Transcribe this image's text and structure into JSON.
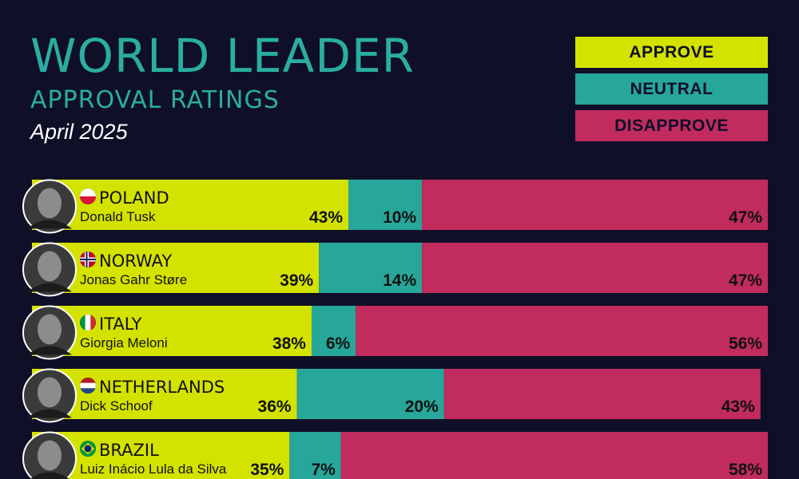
{
  "header": {
    "title": "WORLD LEADER",
    "subtitle": "APPROVAL RATINGS",
    "date": "April 2025"
  },
  "legend": {
    "approve": "APPROVE",
    "neutral": "NEUTRAL",
    "disapprove": "DISAPPROVE"
  },
  "colors": {
    "background": "#0f0f27",
    "approve": "#d4e200",
    "neutral": "#27a69a",
    "disapprove": "#c12b5e",
    "title": "#2aaea1"
  },
  "chart_data": {
    "type": "bar",
    "stacked": true,
    "orientation": "horizontal",
    "categories": [
      "POLAND",
      "NORWAY",
      "ITALY",
      "NETHERLANDS",
      "BRAZIL"
    ],
    "leaders": [
      "Donald Tusk",
      "Jonas Gahr Støre",
      "Giorgia Meloni",
      "Dick Schoof",
      "Luiz Inácio Lula da Silva"
    ],
    "flag_icons": [
      "poland-flag-icon",
      "norway-flag-icon",
      "italy-flag-icon",
      "netherlands-flag-icon",
      "brazil-flag-icon"
    ],
    "series": [
      {
        "name": "APPROVE",
        "values": [
          43,
          39,
          38,
          36,
          35
        ],
        "labels": [
          "43%",
          "39%",
          "38%",
          "36%",
          "35%"
        ]
      },
      {
        "name": "NEUTRAL",
        "values": [
          10,
          14,
          6,
          20,
          7
        ],
        "labels": [
          "10%",
          "14%",
          "6%",
          "20%",
          "7%"
        ]
      },
      {
        "name": "DISAPPROVE",
        "values": [
          47,
          47,
          56,
          43,
          58
        ],
        "labels": [
          "47%",
          "47%",
          "56%",
          "43%",
          "58%"
        ]
      }
    ],
    "title": "WORLD LEADER",
    "subtitle": "APPROVAL RATINGS"
  }
}
